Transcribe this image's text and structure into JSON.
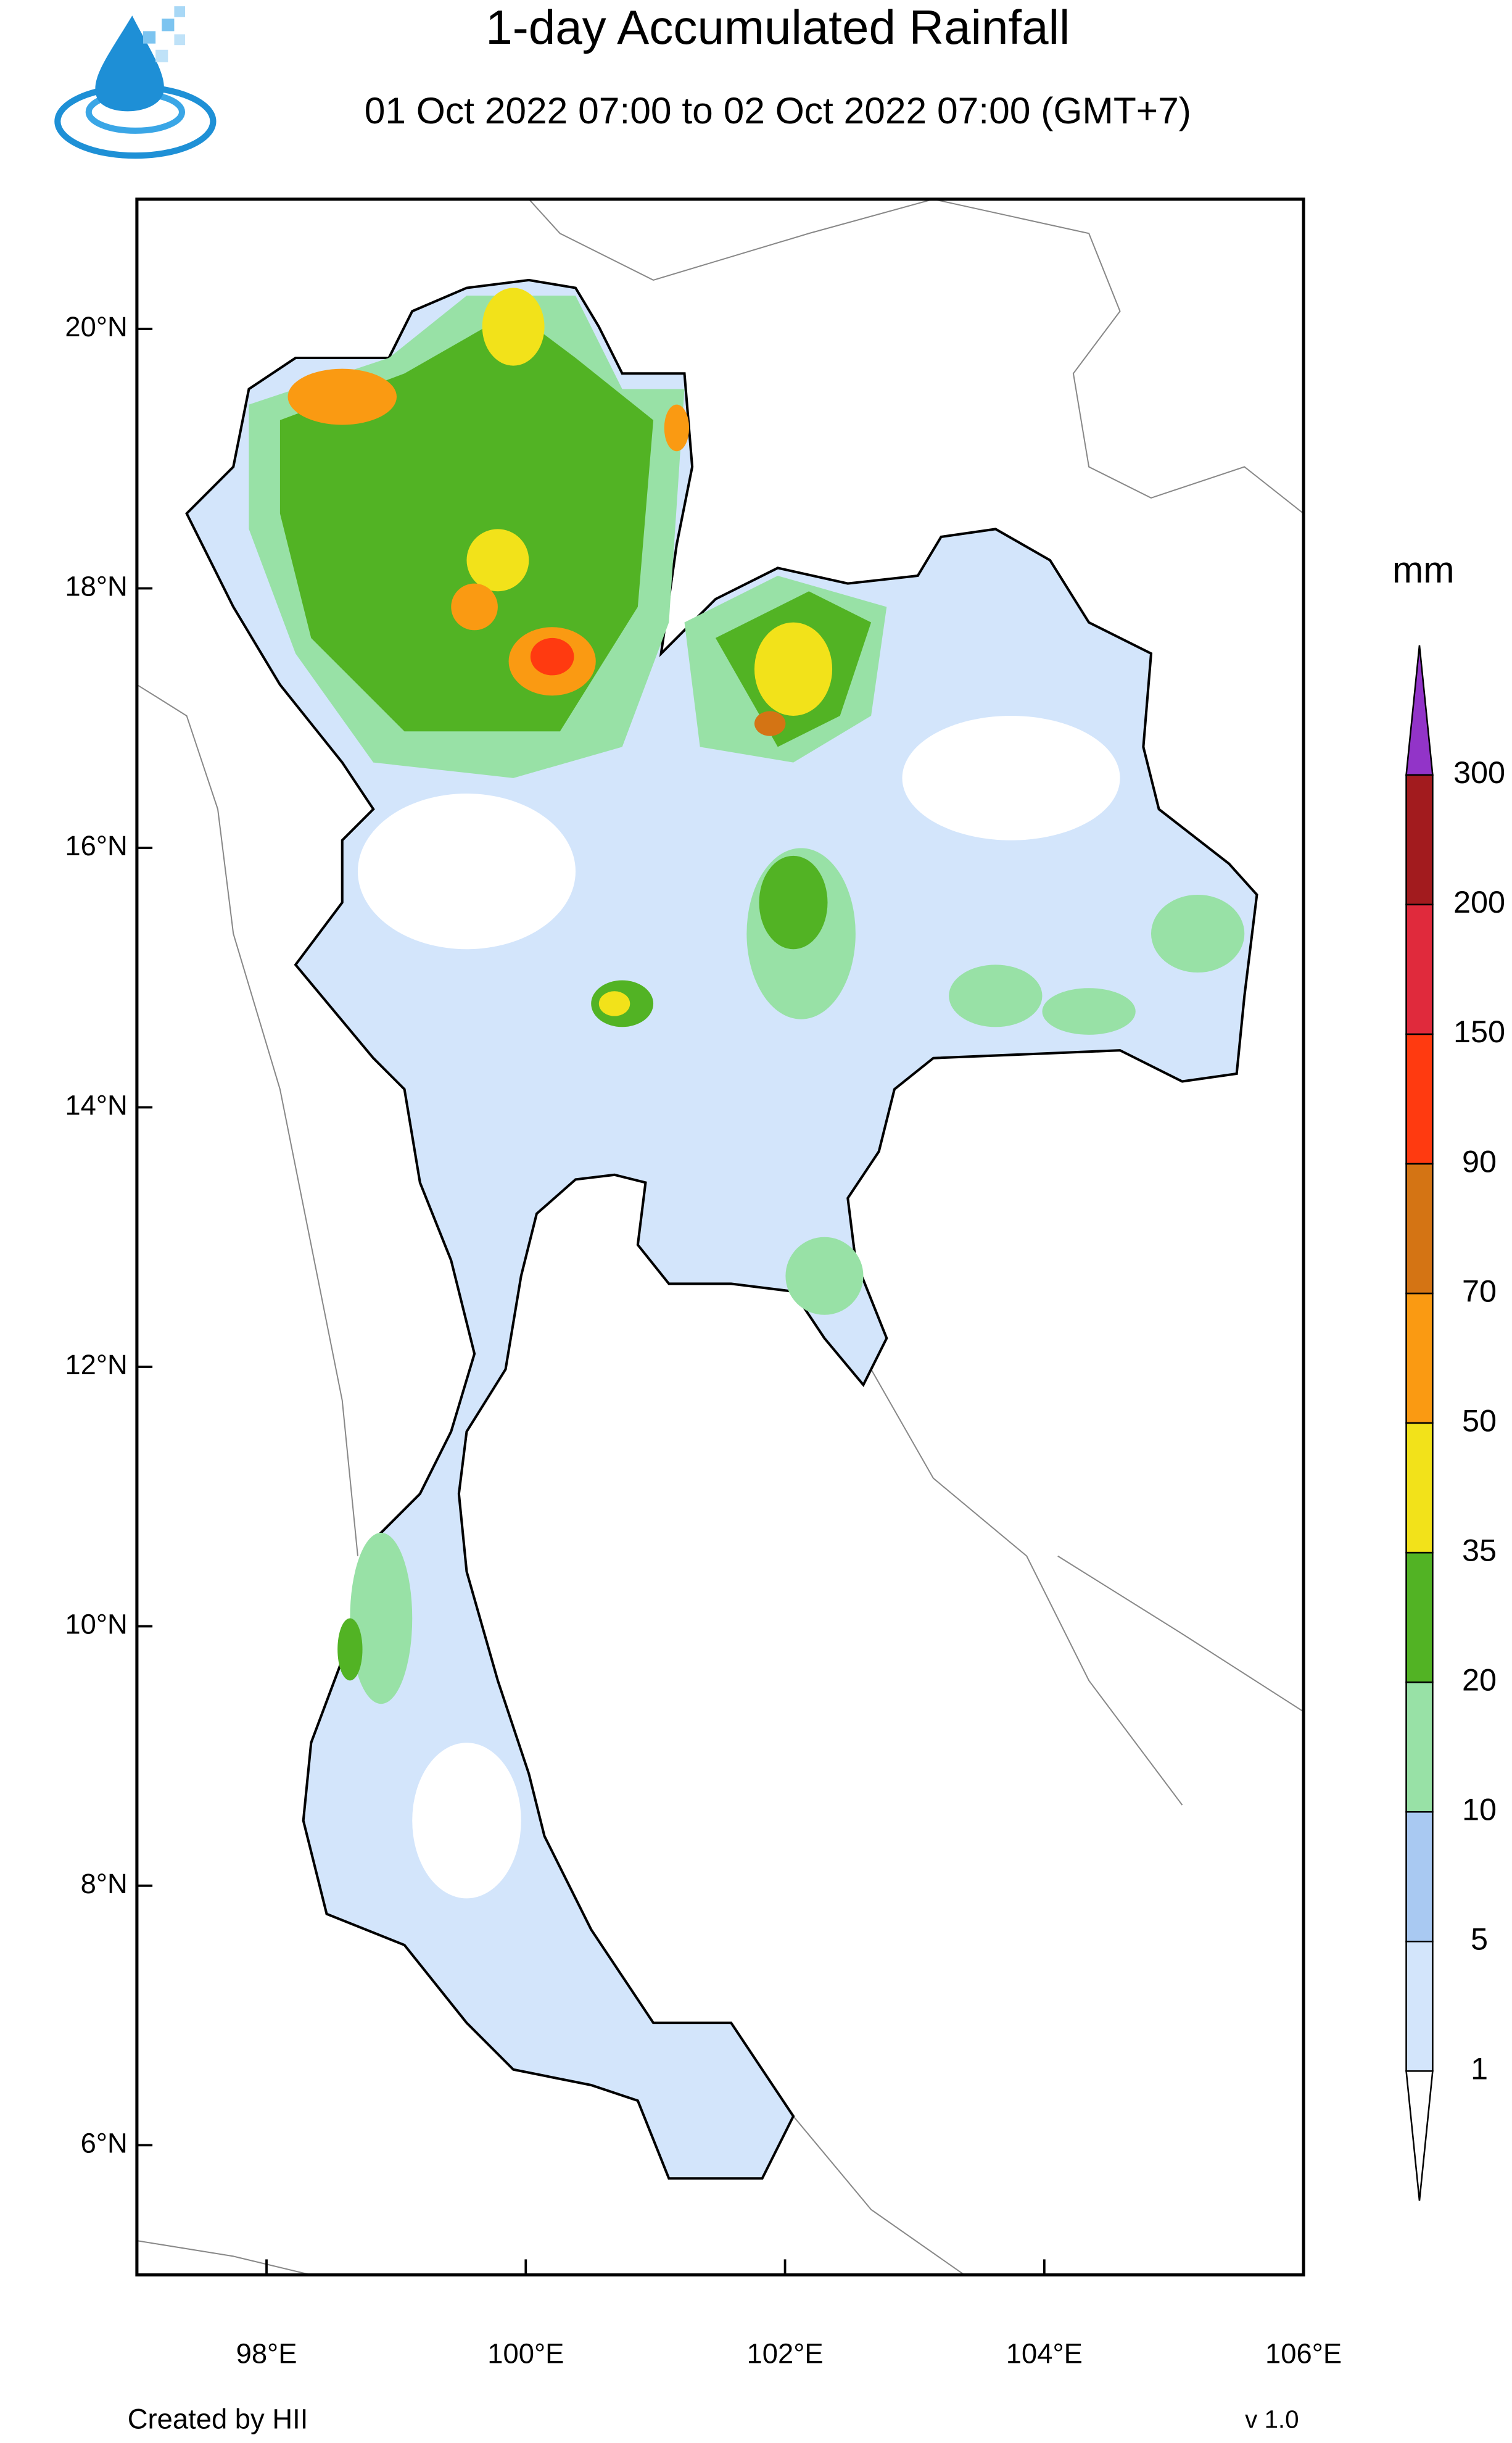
{
  "header": {
    "title": "1-day Accumulated Rainfall",
    "subtitle": "01 Oct 2022 07:00 to 02 Oct 2022 07:00 (GMT+7)"
  },
  "map": {
    "xlim": [
      97,
      106
    ],
    "ylim": [
      5,
      21
    ],
    "lat_ticks": [
      {
        "value": 6,
        "label": "6°N"
      },
      {
        "value": 8,
        "label": "8°N"
      },
      {
        "value": 10,
        "label": "10°N"
      },
      {
        "value": 12,
        "label": "12°N"
      },
      {
        "value": 14,
        "label": "14°N"
      },
      {
        "value": 16,
        "label": "16°N"
      },
      {
        "value": 18,
        "label": "18°N"
      },
      {
        "value": 20,
        "label": "20°N"
      }
    ],
    "lon_ticks": [
      {
        "value": 98,
        "label": "98°E"
      },
      {
        "value": 100,
        "label": "100°E"
      },
      {
        "value": 102,
        "label": "102°E"
      },
      {
        "value": 104,
        "label": "104°E"
      },
      {
        "value": 106,
        "label": "106°E"
      }
    ]
  },
  "colorbar": {
    "unit": "mm",
    "levels": [
      1,
      5,
      10,
      20,
      35,
      50,
      70,
      90,
      150,
      200,
      300
    ],
    "colors": [
      "#ffffff",
      "#d3e5fb",
      "#a9c9f2",
      "#98e1a6",
      "#52b324",
      "#f2e21a",
      "#fa9a12",
      "#d47414",
      "#ff3a10",
      "#e02a3c",
      "#a21b1e",
      "#9234c8"
    ]
  },
  "footer": {
    "credit": "Created by HII",
    "version": "v 1.0"
  }
}
